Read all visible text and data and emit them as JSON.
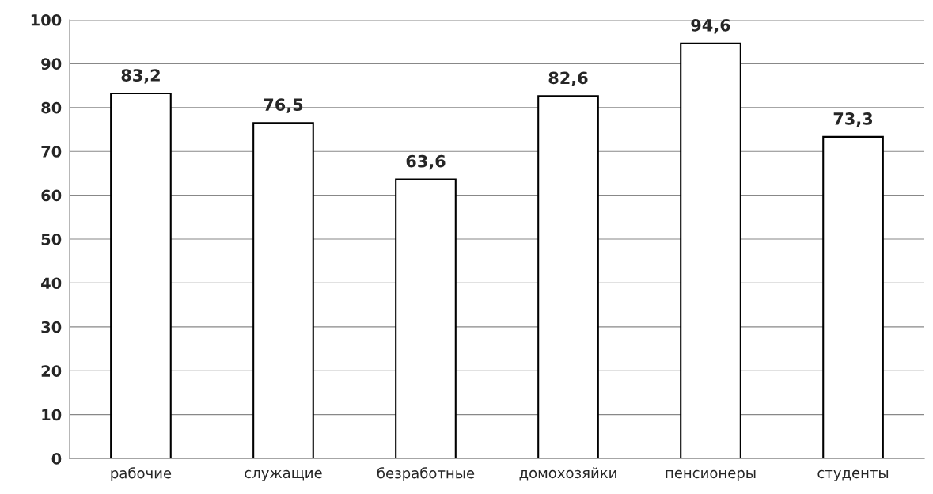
{
  "chart_data": {
    "type": "bar",
    "categories": [
      "рабочие",
      "служащие",
      "безработные",
      "домохозяйки",
      "пенсионеры",
      "студенты"
    ],
    "values": [
      83.2,
      76.5,
      63.6,
      82.6,
      94.6,
      73.3
    ],
    "value_labels": [
      "83,2",
      "76,5",
      "63,6",
      "82,6",
      "94,6",
      "73,3"
    ],
    "color": "#ffffff",
    "ylim": [
      0,
      100
    ],
    "yticks": [
      0,
      10,
      20,
      30,
      40,
      50,
      60,
      70,
      80,
      90,
      100
    ],
    "grid": "y",
    "legend": false
  }
}
